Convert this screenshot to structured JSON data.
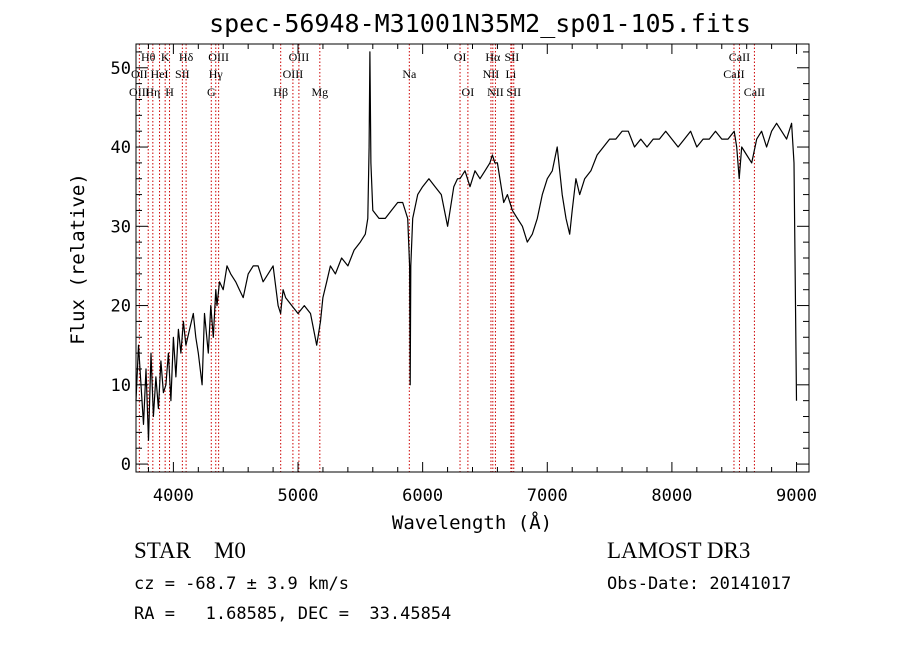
{
  "chart_data": {
    "type": "line",
    "title": "spec-56948-M31001N35M2_sp01-105.fits",
    "xlabel": "Wavelength (Å)",
    "ylabel": "Flux (relative)",
    "xlim": [
      3700,
      9100
    ],
    "ylim": [
      -1,
      53
    ],
    "xticks": [
      4000,
      5000,
      6000,
      7000,
      8000,
      9000
    ],
    "yticks": [
      0,
      10,
      20,
      30,
      40,
      50
    ],
    "series": [
      {
        "name": "flux",
        "x": [
          3700,
          3720,
          3740,
          3760,
          3780,
          3800,
          3820,
          3840,
          3860,
          3880,
          3900,
          3920,
          3940,
          3960,
          3980,
          4000,
          4020,
          4040,
          4060,
          4080,
          4100,
          4130,
          4160,
          4180,
          4200,
          4230,
          4250,
          4280,
          4300,
          4320,
          4340,
          4350,
          4370,
          4400,
          4430,
          4460,
          4500,
          4530,
          4560,
          4600,
          4640,
          4680,
          4720,
          4760,
          4800,
          4840,
          4860,
          4880,
          4900,
          4950,
          5000,
          5050,
          5100,
          5150,
          5180,
          5200,
          5230,
          5260,
          5300,
          5350,
          5400,
          5450,
          5500,
          5540,
          5560,
          5570,
          5577,
          5585,
          5600,
          5650,
          5700,
          5750,
          5800,
          5840,
          5880,
          5895,
          5900,
          5905,
          5920,
          5960,
          6000,
          6050,
          6100,
          6150,
          6200,
          6250,
          6280,
          6300,
          6340,
          6380,
          6420,
          6460,
          6500,
          6540,
          6560,
          6580,
          6600,
          6620,
          6650,
          6680,
          6720,
          6760,
          6800,
          6840,
          6880,
          6920,
          6960,
          7000,
          7040,
          7080,
          7120,
          7150,
          7180,
          7200,
          7230,
          7260,
          7300,
          7350,
          7400,
          7450,
          7500,
          7550,
          7600,
          7650,
          7700,
          7750,
          7800,
          7850,
          7900,
          7950,
          8000,
          8050,
          8100,
          8150,
          8200,
          8250,
          8300,
          8350,
          8400,
          8450,
          8500,
          8520,
          8540,
          8560,
          8600,
          8640,
          8680,
          8720,
          8760,
          8800,
          8840,
          8880,
          8920,
          8960,
          8980,
          9000
        ],
        "y": [
          8,
          15,
          10,
          5,
          12,
          3,
          14,
          6,
          11,
          7,
          13,
          9,
          10,
          14,
          8,
          16,
          11,
          17,
          14,
          18,
          15,
          17,
          19,
          16,
          14,
          10,
          19,
          14,
          20,
          16,
          22,
          20,
          23,
          22,
          25,
          24,
          23,
          22,
          21,
          24,
          25,
          25,
          23,
          24,
          25,
          20,
          19,
          22,
          21,
          20,
          19,
          20,
          19,
          15,
          18,
          21,
          23,
          25,
          24,
          26,
          25,
          27,
          28,
          29,
          31,
          40,
          52,
          38,
          32,
          31,
          31,
          32,
          33,
          33,
          31,
          25,
          10,
          25,
          31,
          34,
          35,
          36,
          35,
          34,
          30,
          35,
          36,
          36,
          37,
          35,
          37,
          36,
          37,
          38,
          39,
          38,
          38,
          36,
          33,
          34,
          32,
          31,
          30,
          28,
          29,
          31,
          34,
          36,
          37,
          40,
          34,
          31,
          29,
          32,
          36,
          34,
          36,
          37,
          39,
          40,
          41,
          41,
          42,
          42,
          40,
          41,
          40,
          41,
          41,
          42,
          41,
          40,
          41,
          42,
          40,
          41,
          41,
          42,
          41,
          41,
          42,
          40,
          36,
          40,
          39,
          38,
          41,
          42,
          40,
          42,
          43,
          42,
          41,
          43,
          38,
          8
        ]
      }
    ],
    "line_labels": [
      {
        "label": "Hθ",
        "wavelength": 3798,
        "row": 0
      },
      {
        "label": "OII",
        "wavelength": 3727,
        "row": 1
      },
      {
        "label": "OIII",
        "wavelength": 3727,
        "row": 2
      },
      {
        "label": "K",
        "wavelength": 3934,
        "row": 0
      },
      {
        "label": "HeI",
        "wavelength": 3889,
        "row": 1
      },
      {
        "label": "Hη",
        "wavelength": 3835,
        "row": 2
      },
      {
        "label": "Hδ",
        "wavelength": 4102,
        "row": 0
      },
      {
        "label": "SII",
        "wavelength": 4072,
        "row": 1
      },
      {
        "label": "H",
        "wavelength": 3969,
        "row": 2
      },
      {
        "label": "OIII",
        "wavelength": 4363,
        "row": 0
      },
      {
        "label": "Hγ",
        "wavelength": 4340,
        "row": 1
      },
      {
        "label": "G",
        "wavelength": 4304,
        "row": 2
      },
      {
        "label": "OIII",
        "wavelength": 5007,
        "row": 0
      },
      {
        "label": "OIII",
        "wavelength": 4959,
        "row": 1
      },
      {
        "label": "Hβ",
        "wavelength": 4861,
        "row": 2
      },
      {
        "label": "Mg",
        "wavelength": 5175,
        "row": 2
      },
      {
        "label": "Na",
        "wavelength": 5893,
        "row": 1
      },
      {
        "label": "OI",
        "wavelength": 6300,
        "row": 0
      },
      {
        "label": "OI",
        "wavelength": 6363,
        "row": 2
      },
      {
        "label": "Hα",
        "wavelength": 6563,
        "row": 0
      },
      {
        "label": "SII",
        "wavelength": 6716,
        "row": 0
      },
      {
        "label": "NII",
        "wavelength": 6548,
        "row": 1
      },
      {
        "label": "Li",
        "wavelength": 6708,
        "row": 1
      },
      {
        "label": "NII",
        "wavelength": 6584,
        "row": 2
      },
      {
        "label": "SII",
        "wavelength": 6731,
        "row": 2
      },
      {
        "label": "CaII",
        "wavelength": 8542,
        "row": 0
      },
      {
        "label": "CaII",
        "wavelength": 8498,
        "row": 1
      },
      {
        "label": "CaII",
        "wavelength": 8662,
        "row": 2
      }
    ],
    "marker_lines": [
      3727,
      3798,
      3835,
      3889,
      3934,
      3969,
      4072,
      4102,
      4304,
      4340,
      4363,
      4861,
      4959,
      5007,
      5175,
      5893,
      6300,
      6363,
      6548,
      6563,
      6584,
      6708,
      6716,
      6731,
      8498,
      8542,
      8662
    ]
  },
  "info": {
    "class_text": "STAR    M0",
    "cz_text": "cz = -68.7 ± 3.9 km/s",
    "radec_text": "RA =   1.68585, DEC =  33.45854",
    "survey_text": "LAMOST DR3",
    "obs_date_text": "Obs-Date: 20141017"
  },
  "colors": {
    "marker_line": "#cc0000",
    "spectrum": "#000000"
  }
}
